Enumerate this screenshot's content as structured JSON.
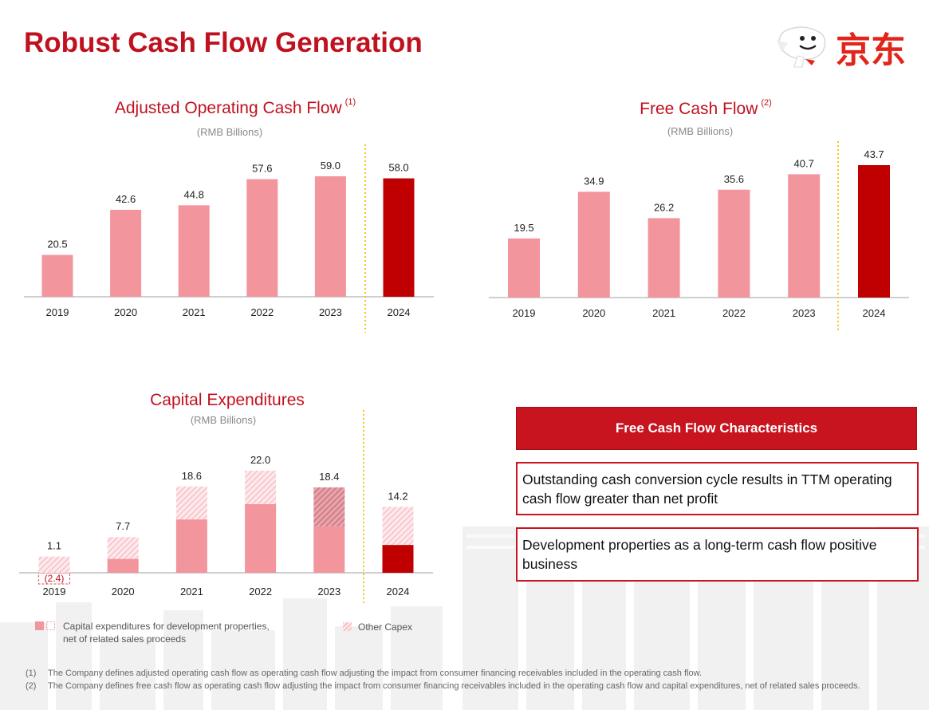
{
  "page": {
    "title": "Robust Cash Flow Generation",
    "logo_text": "京东"
  },
  "colors": {
    "brand_red": "#c0111f",
    "bar_pink": "#f2959d",
    "bar_dark": "#c00000",
    "divider_gold": "#f5c518"
  },
  "chart_data": [
    {
      "id": "adjusted_ocf",
      "type": "bar",
      "title": "Adjusted Operating Cash Flow",
      "title_note": "(1)",
      "subtitle": "(RMB Billions)",
      "categories": [
        "2019",
        "2020",
        "2021",
        "2022",
        "2023",
        "2024"
      ],
      "values": [
        20.5,
        42.6,
        44.8,
        57.6,
        59.0,
        58.0
      ],
      "labels": [
        "20.5",
        "42.6",
        "44.8",
        "57.6",
        "59.0",
        "58.0"
      ],
      "highlight_last": true
    },
    {
      "id": "free_cash_flow",
      "type": "bar",
      "title": "Free Cash Flow",
      "title_note": "(2)",
      "subtitle": "(RMB Billions)",
      "categories": [
        "2019",
        "2020",
        "2021",
        "2022",
        "2023",
        "2024"
      ],
      "values": [
        19.5,
        34.9,
        26.2,
        35.6,
        40.7,
        43.7
      ],
      "labels": [
        "19.5",
        "34.9",
        "26.2",
        "35.6",
        "40.7",
        "43.7"
      ],
      "highlight_last": true
    },
    {
      "id": "capex",
      "type": "bar",
      "stacked": true,
      "title": "Capital Expenditures",
      "subtitle": "(RMB Billions)",
      "categories": [
        "2019",
        "2020",
        "2021",
        "2022",
        "2023",
        "2024"
      ],
      "totals": [
        1.1,
        7.7,
        18.6,
        22.0,
        18.4,
        14.2
      ],
      "total_labels": [
        "1.1",
        "7.7",
        "18.6",
        "22.0",
        "18.4",
        "14.2"
      ],
      "series": [
        {
          "name": "Capital expenditures for development properties, net of related sales proceeds",
          "values": [
            -2.4,
            3.0,
            11.5,
            14.8,
            10.0,
            6.0
          ]
        },
        {
          "name": "Other Capex",
          "values": [
            3.5,
            4.7,
            7.1,
            7.2,
            8.4,
            8.2
          ]
        }
      ],
      "negative_labels": [
        "(2.4)",
        "",
        "",
        "",
        "",
        ""
      ],
      "highlight_last": true
    }
  ],
  "legend": {
    "dev_properties_line1": "Capital expenditures for development properties,",
    "dev_properties_line2": "net of related sales proceeds",
    "other_capex": "Other Capex"
  },
  "fcf_characteristics": {
    "header": "Free Cash Flow Characteristics",
    "point1": "Outstanding cash conversion cycle results in TTM operating cash flow greater than net profit",
    "point2": "Development properties as a long-term cash flow positive business"
  },
  "footnotes": [
    {
      "num": "(1)",
      "text": "The Company defines adjusted operating cash flow as operating cash flow adjusting the impact from consumer financing receivables included in the operating cash flow."
    },
    {
      "num": "(2)",
      "text": "The Company defines free cash flow as operating cash flow adjusting the impact from consumer financing receivables included in the operating cash flow and capital expenditures, net of related sales proceeds."
    }
  ]
}
